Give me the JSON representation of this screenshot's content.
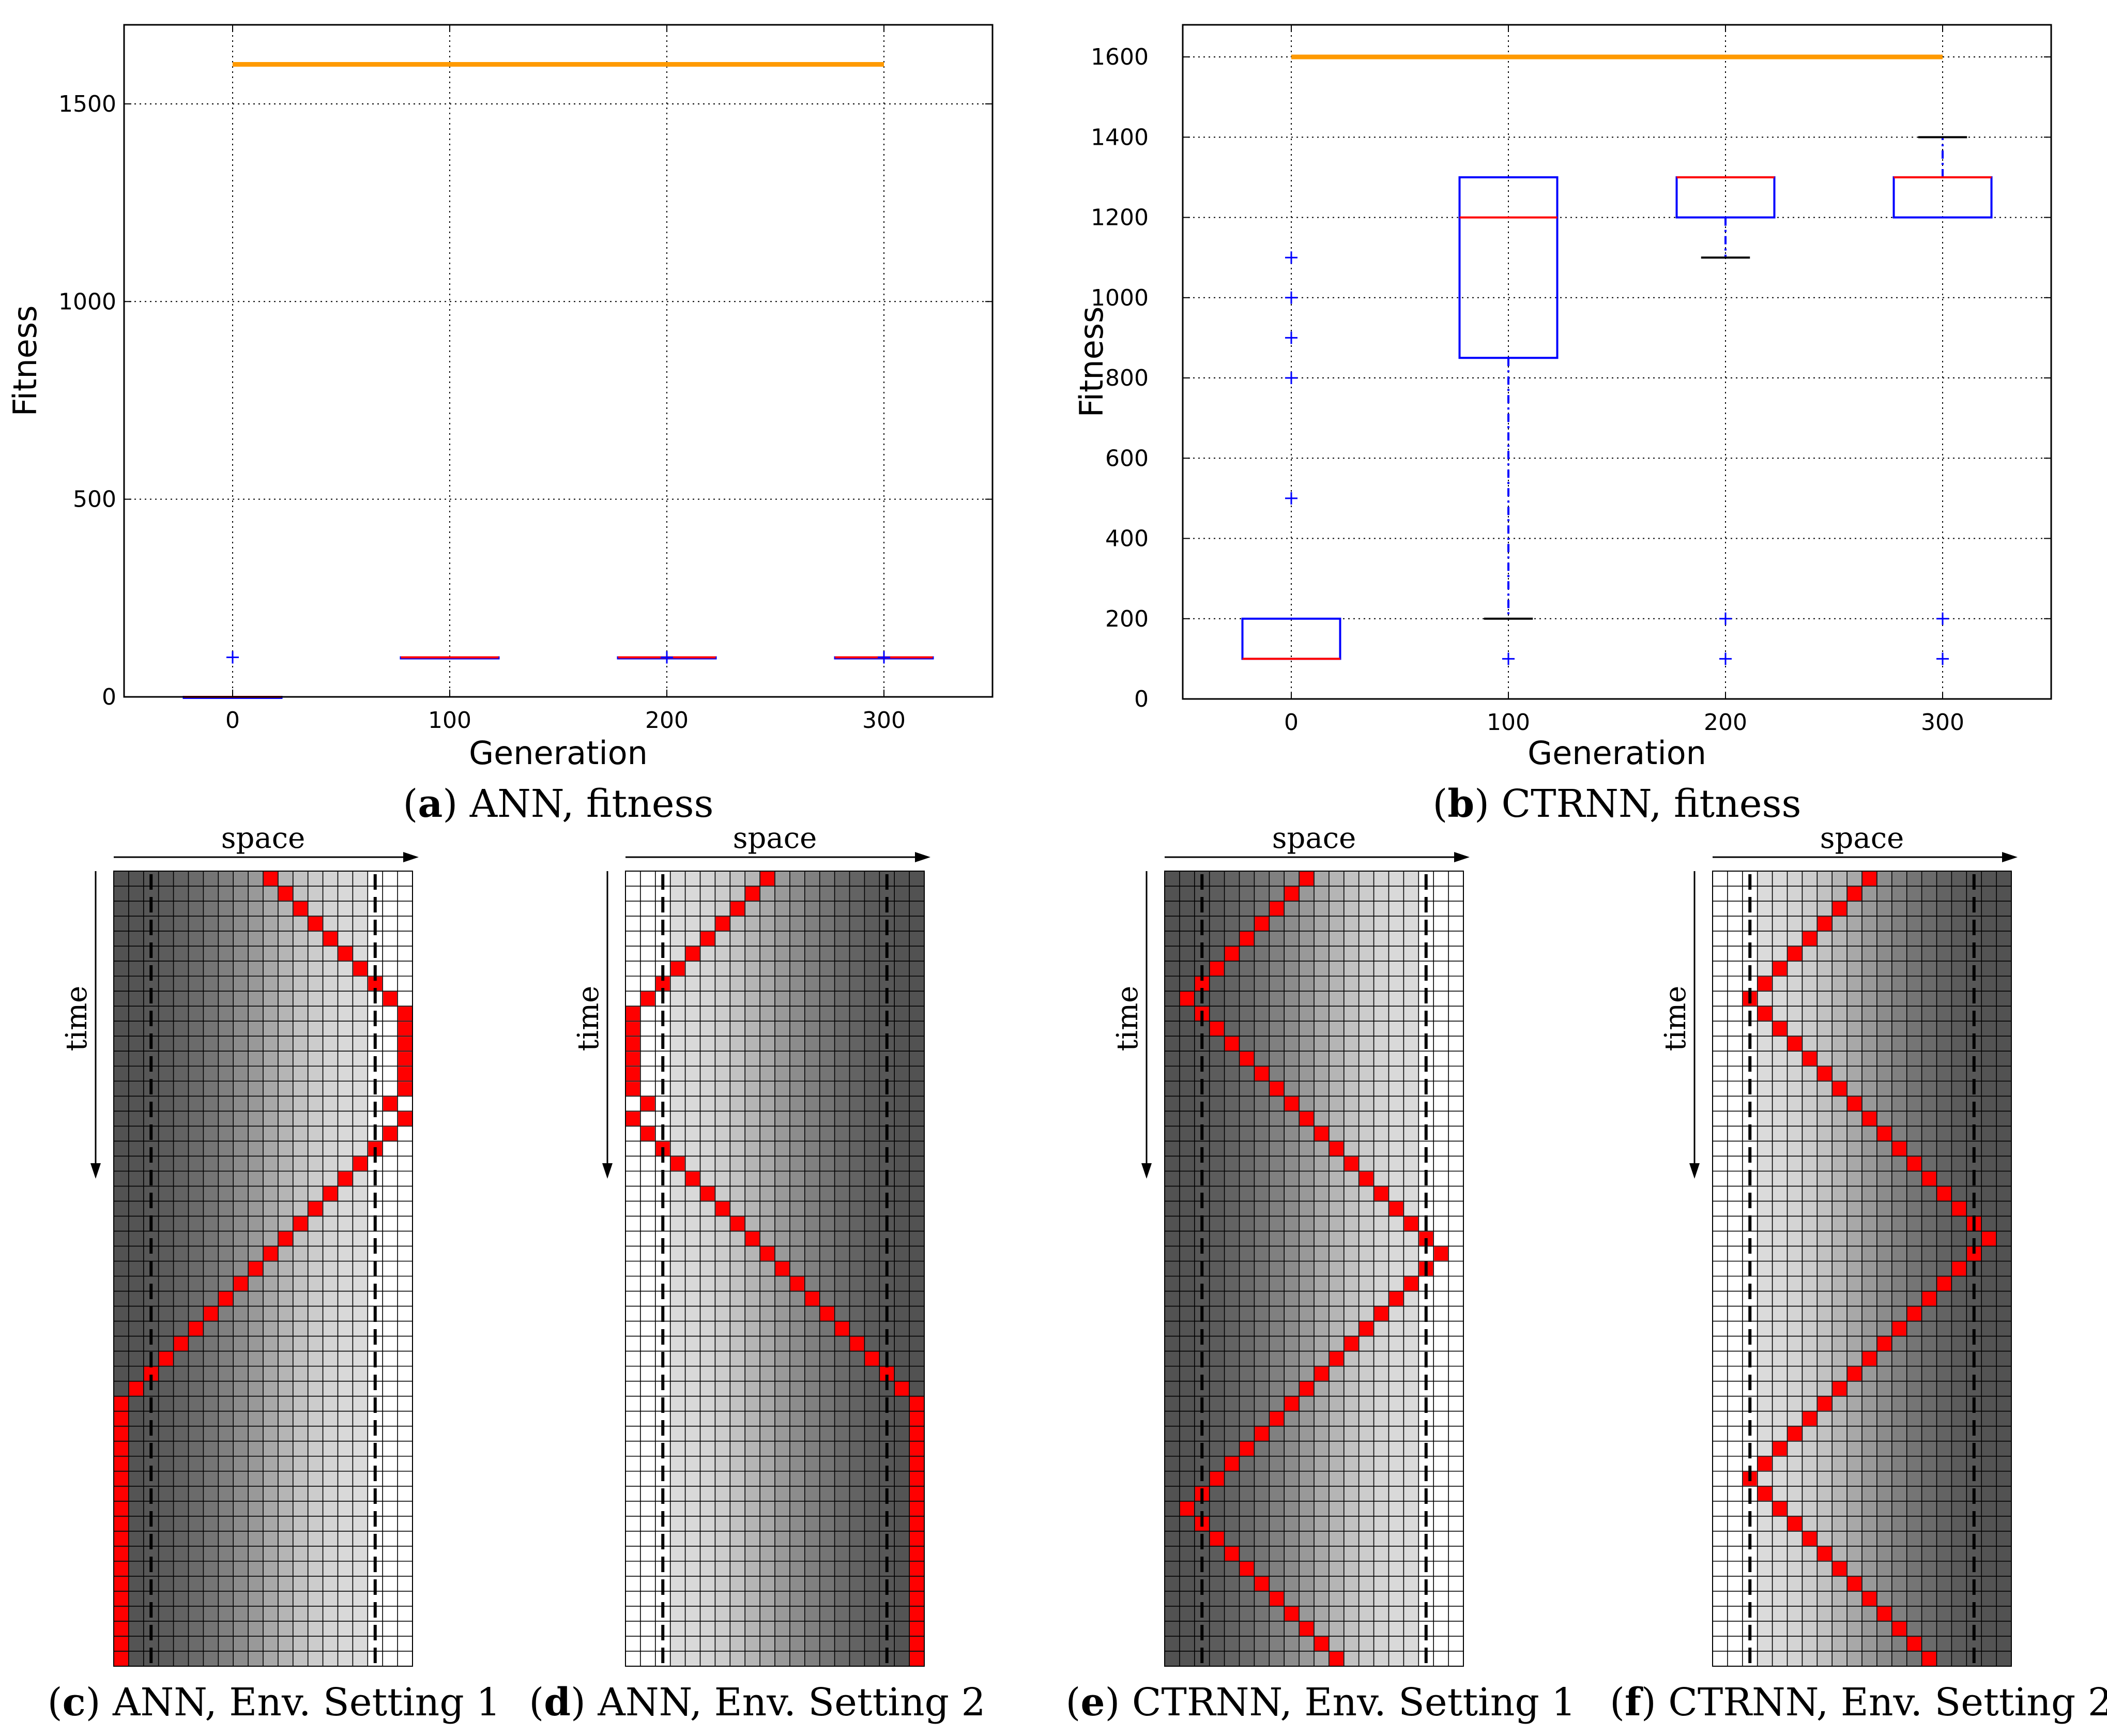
{
  "chart_data": [
    {
      "type": "box",
      "caption_letter": "a",
      "caption_text": "ANN, fitness",
      "xlabel": "Generation",
      "ylabel": "Fitness",
      "xlim": [
        -50,
        350
      ],
      "ylim": [
        0,
        1700
      ],
      "xticks": [
        0,
        100,
        200,
        300
      ],
      "yticks": [
        0,
        500,
        1000,
        1500
      ],
      "grid": true,
      "reference_line": {
        "value": 1600,
        "from": 0,
        "to": 300,
        "color": "#ff9a00"
      },
      "boxes": [
        {
          "x": 0,
          "q1": 0,
          "median": 0,
          "q3": 0,
          "whisker_low": 0,
          "whisker_high": 0,
          "outliers": [
            100
          ]
        },
        {
          "x": 100,
          "q1": 100,
          "median": 100,
          "q3": 100,
          "whisker_low": 100,
          "whisker_high": 100,
          "outliers": []
        },
        {
          "x": 200,
          "q1": 100,
          "median": 100,
          "q3": 100,
          "whisker_low": 100,
          "whisker_high": 100,
          "outliers": [
            100
          ]
        },
        {
          "x": 300,
          "q1": 100,
          "median": 100,
          "q3": 100,
          "whisker_low": 100,
          "whisker_high": 100,
          "outliers": [
            100
          ]
        }
      ]
    },
    {
      "type": "box",
      "caption_letter": "b",
      "caption_text": "CTRNN, fitness",
      "xlabel": "Generation",
      "ylabel": "Fitness",
      "xlim": [
        -50,
        350
      ],
      "ylim": [
        0,
        1680
      ],
      "xticks": [
        0,
        100,
        200,
        300
      ],
      "yticks": [
        0,
        200,
        400,
        600,
        800,
        1000,
        1200,
        1400,
        1600
      ],
      "grid": true,
      "reference_line": {
        "value": 1600,
        "from": 0,
        "to": 300,
        "color": "#ff9a00"
      },
      "boxes": [
        {
          "x": 0,
          "q1": 100,
          "median": 100,
          "q3": 200,
          "whisker_low": 100,
          "whisker_high": 200,
          "outliers": [
            500,
            800,
            900,
            1000,
            1100
          ]
        },
        {
          "x": 100,
          "q1": 850,
          "median": 1200,
          "q3": 1300,
          "whisker_low": 200,
          "whisker_high": 1300,
          "outliers": [
            100
          ]
        },
        {
          "x": 200,
          "q1": 1200,
          "median": 1300,
          "q3": 1300,
          "whisker_low": 1100,
          "whisker_high": 1300,
          "outliers": [
            100,
            200
          ]
        },
        {
          "x": 300,
          "q1": 1200,
          "median": 1300,
          "q3": 1300,
          "whisker_low": 1200,
          "whisker_high": 1400,
          "outliers": [
            100,
            200
          ]
        }
      ]
    },
    {
      "type": "heatmap",
      "caption_letter": "c",
      "caption_text": "ANN, Env. Setting 1",
      "xlabel": "space",
      "ylabel": "time",
      "columns": 20,
      "rows": 53,
      "shading": [
        0.32,
        0.33,
        0.34,
        0.36,
        0.39,
        0.42,
        0.46,
        0.5,
        0.55,
        0.6,
        0.66,
        0.71,
        0.76,
        0.8,
        0.83,
        0.85,
        0.86,
        1.0,
        1.0,
        1.0
      ],
      "markers": [
        2,
        17
      ],
      "trajectory": [
        10,
        11,
        12,
        13,
        14,
        15,
        16,
        17,
        18,
        19,
        19,
        19,
        19,
        19,
        19,
        18,
        19,
        18,
        17,
        16,
        15,
        14,
        13,
        12,
        11,
        10,
        9,
        8,
        7,
        6,
        5,
        4,
        3,
        2,
        1,
        0,
        0,
        0,
        0,
        0,
        0,
        0,
        0,
        0,
        0,
        0,
        0,
        0,
        0,
        0,
        0,
        0,
        0
      ]
    },
    {
      "type": "heatmap",
      "caption_letter": "d",
      "caption_text": "ANN, Env. Setting 2",
      "xlabel": "space",
      "ylabel": "time",
      "columns": 20,
      "rows": 53,
      "shading": [
        1.0,
        1.0,
        1.0,
        0.86,
        0.85,
        0.83,
        0.8,
        0.76,
        0.71,
        0.66,
        0.6,
        0.55,
        0.5,
        0.46,
        0.42,
        0.39,
        0.36,
        0.34,
        0.33,
        0.32
      ],
      "markers": [
        2,
        17
      ],
      "trajectory": [
        9,
        8,
        7,
        6,
        5,
        4,
        3,
        2,
        1,
        0,
        0,
        0,
        0,
        0,
        0,
        1,
        0,
        1,
        2,
        3,
        4,
        5,
        6,
        7,
        8,
        9,
        10,
        11,
        12,
        13,
        14,
        15,
        16,
        17,
        18,
        19,
        19,
        19,
        19,
        19,
        19,
        19,
        19,
        19,
        19,
        19,
        19,
        19,
        19,
        19,
        19,
        19,
        19
      ]
    },
    {
      "type": "heatmap",
      "caption_letter": "e",
      "caption_text": "CTRNN, Env. Setting 1",
      "xlabel": "space",
      "ylabel": "time",
      "columns": 20,
      "rows": 53,
      "shading": [
        0.32,
        0.33,
        0.34,
        0.36,
        0.39,
        0.42,
        0.46,
        0.5,
        0.55,
        0.6,
        0.66,
        0.71,
        0.76,
        0.8,
        0.83,
        0.85,
        0.86,
        1.0,
        1.0,
        1.0
      ],
      "markers": [
        2,
        17
      ],
      "trajectory": [
        9,
        8,
        7,
        6,
        5,
        4,
        3,
        2,
        1,
        2,
        3,
        4,
        5,
        6,
        7,
        8,
        9,
        10,
        11,
        12,
        13,
        14,
        15,
        16,
        17,
        18,
        17,
        16,
        15,
        14,
        13,
        12,
        11,
        10,
        9,
        8,
        7,
        6,
        5,
        4,
        3,
        2,
        1,
        2,
        3,
        4,
        5,
        6,
        7,
        8,
        9,
        10,
        11
      ]
    },
    {
      "type": "heatmap",
      "caption_letter": "f",
      "caption_text": "CTRNN, Env. Setting 2",
      "xlabel": "space",
      "ylabel": "time",
      "columns": 20,
      "rows": 53,
      "shading": [
        1.0,
        1.0,
        1.0,
        0.86,
        0.85,
        0.83,
        0.8,
        0.76,
        0.71,
        0.66,
        0.6,
        0.55,
        0.5,
        0.46,
        0.42,
        0.39,
        0.36,
        0.34,
        0.33,
        0.32
      ],
      "markers": [
        2,
        17
      ],
      "trajectory": [
        10,
        9,
        8,
        7,
        6,
        5,
        4,
        3,
        2,
        3,
        4,
        5,
        6,
        7,
        8,
        9,
        10,
        11,
        12,
        13,
        14,
        15,
        16,
        17,
        18,
        17,
        16,
        15,
        14,
        13,
        12,
        11,
        10,
        9,
        8,
        7,
        6,
        5,
        4,
        3,
        2,
        3,
        4,
        5,
        6,
        7,
        8,
        9,
        10,
        11,
        12,
        13,
        14
      ]
    }
  ],
  "colors": {
    "box": "#0000ff",
    "median": "#ff0000",
    "whisker_cap": "#000000",
    "reference": "#ff9a00",
    "trajectory": "#ff0000",
    "grid": "#000000"
  }
}
